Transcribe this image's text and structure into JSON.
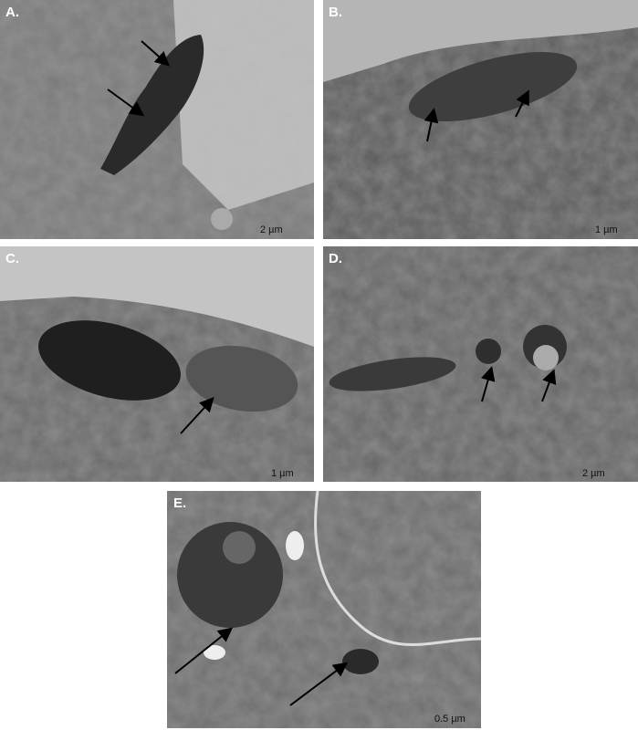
{
  "panels": [
    {
      "label": "A.",
      "scale": "2 µm"
    },
    {
      "label": "B.",
      "scale": "1 µm"
    },
    {
      "label": "C.",
      "scale": "1 µm"
    },
    {
      "label": "D.",
      "scale": "2 µm"
    },
    {
      "label": "E.",
      "scale": "0.5 µm"
    }
  ]
}
